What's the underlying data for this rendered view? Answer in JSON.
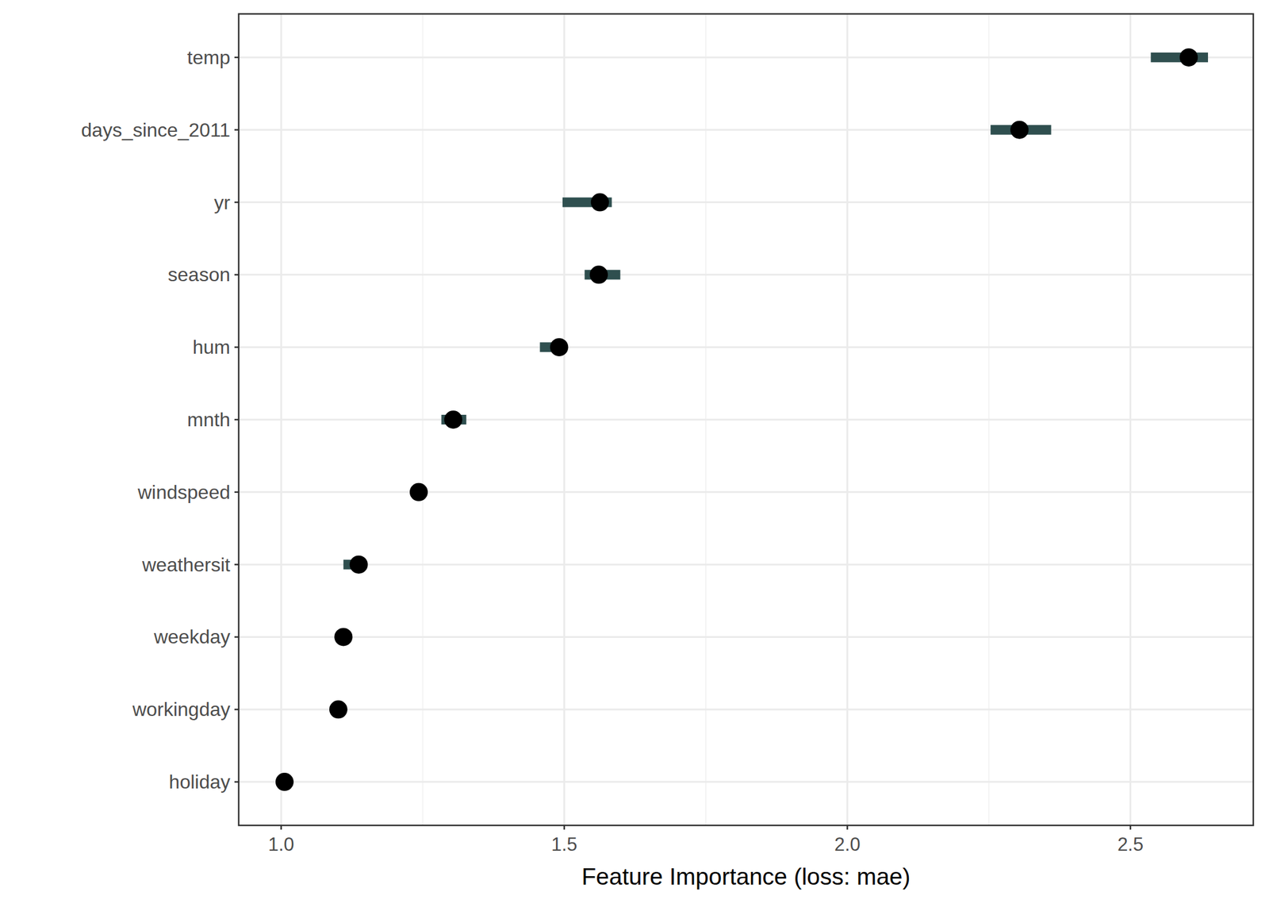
{
  "chart_data": {
    "type": "dot",
    "orientation": "horizontal",
    "x_label": "Feature Importance (loss: mae)",
    "categories": [
      "temp",
      "days_since_2011",
      "yr",
      "season",
      "hum",
      "mnth",
      "windspeed",
      "weathersit",
      "weekday",
      "workingday",
      "holiday"
    ],
    "values": [
      2.603,
      2.304,
      1.563,
      1.561,
      1.491,
      1.304,
      1.243,
      1.137,
      1.11,
      1.101,
      1.006
    ],
    "lower": [
      2.536,
      2.253,
      1.497,
      1.536,
      1.457,
      1.283,
      1.24,
      1.11,
      1.105,
      1.097,
      1.003
    ],
    "upper": [
      2.637,
      2.36,
      1.584,
      1.599,
      1.504,
      1.327,
      1.246,
      1.147,
      1.115,
      1.105,
      1.009
    ],
    "xlim": [
      0.925,
      2.717
    ],
    "xticks": [
      {
        "value": 1.0,
        "label": "1.0"
      },
      {
        "value": 1.5,
        "label": "1.5"
      },
      {
        "value": 2.0,
        "label": "2.0"
      },
      {
        "value": 2.5,
        "label": "2.5"
      }
    ],
    "color": "#000000",
    "grid": true
  }
}
